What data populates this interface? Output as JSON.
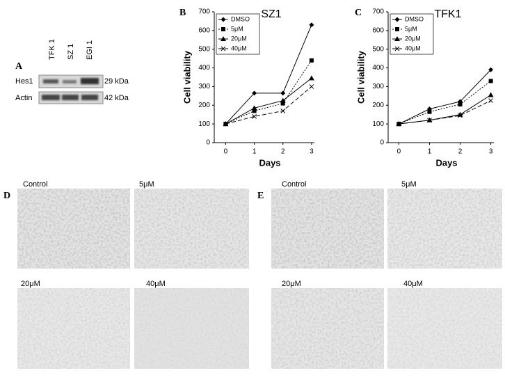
{
  "chart_data": [
    {
      "type": "line",
      "panel_label": "B",
      "title": "SZ1",
      "x_label": "Days",
      "y_label": "Cell viability",
      "x": [
        0,
        1,
        2,
        3
      ],
      "xlim": [
        -0.4,
        3.1
      ],
      "xticks": [
        0,
        1,
        2,
        3
      ],
      "ylim": [
        0,
        700
      ],
      "yticks": [
        0,
        100,
        200,
        300,
        400,
        500,
        600,
        700
      ],
      "series": [
        {
          "name": "DMSO",
          "color": "#000000",
          "marker": "diamond",
          "dash": "solid",
          "values": [
            100,
            265,
            265,
            630
          ]
        },
        {
          "name": "5μM",
          "color": "#000000",
          "marker": "square",
          "dash": "dotted",
          "values": [
            100,
            170,
            210,
            440
          ]
        },
        {
          "name": "20μM",
          "color": "#000000",
          "marker": "triangle",
          "dash": "solid",
          "values": [
            100,
            185,
            225,
            345
          ]
        },
        {
          "name": "40μM",
          "color": "#000000",
          "marker": "x",
          "dash": "dashed",
          "values": [
            100,
            140,
            170,
            300
          ]
        }
      ]
    },
    {
      "type": "line",
      "panel_label": "C",
      "title": "TFK1",
      "x_label": "Days",
      "y_label": "Cell viability",
      "x": [
        0,
        1,
        2,
        3
      ],
      "xlim": [
        -0.35,
        3.1
      ],
      "xticks": [
        0,
        1,
        2,
        3
      ],
      "ylim": [
        0,
        700
      ],
      "yticks": [
        0,
        100,
        200,
        300,
        400,
        500,
        600,
        700
      ],
      "series": [
        {
          "name": "DMSO",
          "color": "#000000",
          "marker": "diamond",
          "dash": "solid",
          "values": [
            100,
            180,
            220,
            390
          ]
        },
        {
          "name": "5μM",
          "color": "#000000",
          "marker": "square",
          "dash": "dotted",
          "values": [
            100,
            165,
            205,
            330
          ]
        },
        {
          "name": "20μM",
          "color": "#000000",
          "marker": "triangle",
          "dash": "solid",
          "values": [
            100,
            120,
            150,
            255
          ]
        },
        {
          "name": "40μM",
          "color": "#000000",
          "marker": "x",
          "dash": "dashed",
          "values": [
            100,
            120,
            145,
            225
          ]
        }
      ]
    }
  ],
  "figure_a": {
    "label": "A",
    "lanes": [
      "TFK 1",
      "SZ 1",
      "EGI 1"
    ],
    "rows": [
      {
        "name": "Hes1",
        "size": "29 kDa"
      },
      {
        "name": "Actin",
        "size": "42 kDa"
      }
    ]
  },
  "figure_d": {
    "label": "D",
    "images": [
      "Control",
      "5μM",
      "20μM",
      "40μM"
    ]
  },
  "figure_e": {
    "label": "E",
    "images": [
      "Control",
      "5μM",
      "20μM",
      "40μM"
    ]
  }
}
